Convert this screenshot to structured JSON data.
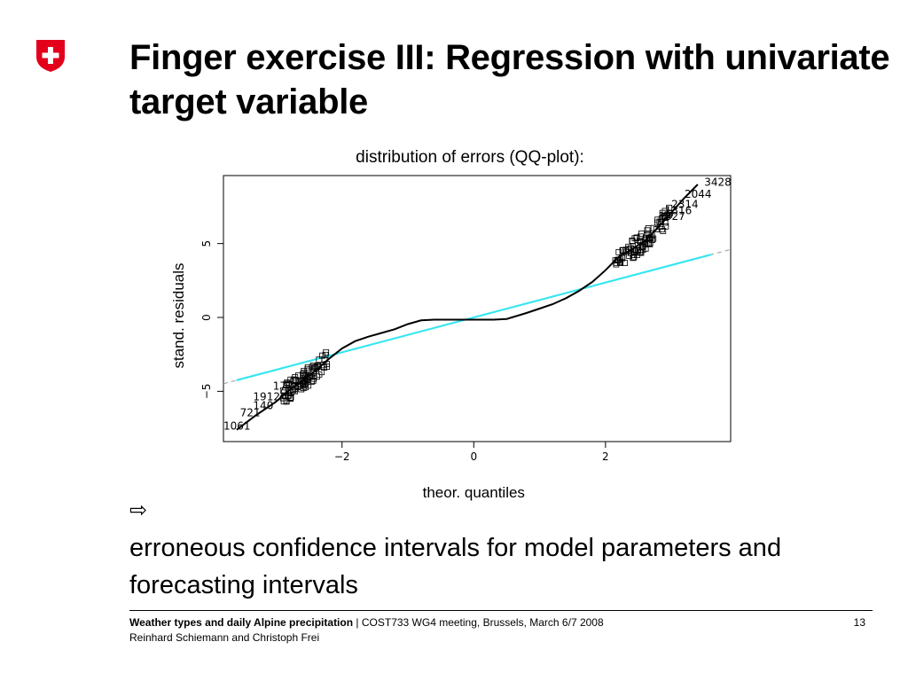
{
  "slide": {
    "title": "Finger exercise III: Regression with univariate target variable",
    "chart_caption": "distribution of errors (QQ-plot):",
    "arrow_symbol": "⇨",
    "conclusion": "erroneous confidence intervals for model parameters and forecasting intervals",
    "logo_icon": "swiss-cross-icon",
    "colors": {
      "logo_red": "#e3001b",
      "reference_line": "#33e6f0",
      "qq_curve": "#000000"
    }
  },
  "footer": {
    "project": "Weather types and daily Alpine precipitation",
    "separator": " | ",
    "event": "COST733 WG4 meeting, Brussels, March 6/7 2008",
    "authors": "Reinhard Schiemann and Christoph Frei",
    "page": "13"
  },
  "chart_data": {
    "type": "scatter",
    "xlabel": "theor. quantiles",
    "ylabel": "stand. residuals",
    "xlim": [
      -3.8,
      3.9
    ],
    "ylim": [
      -8.4,
      9.6
    ],
    "xticks": [
      "-2",
      "0",
      "2"
    ],
    "yticks": [
      "-5",
      "0",
      "5"
    ],
    "qq_curve": [
      [
        -3.6,
        -7.6
      ],
      [
        -3.3,
        -6.6
      ],
      [
        -3.0,
        -5.7
      ],
      [
        -2.8,
        -4.9
      ],
      [
        -2.6,
        -4.3
      ],
      [
        -2.4,
        -3.6
      ],
      [
        -2.2,
        -2.8
      ],
      [
        -2.0,
        -2.1
      ],
      [
        -1.8,
        -1.6
      ],
      [
        -1.6,
        -1.3
      ],
      [
        -1.4,
        -1.05
      ],
      [
        -1.2,
        -0.8
      ],
      [
        -1.0,
        -0.45
      ],
      [
        -0.8,
        -0.2
      ],
      [
        -0.6,
        -0.15
      ],
      [
        -0.3,
        -0.15
      ],
      [
        0.0,
        -0.15
      ],
      [
        0.3,
        -0.15
      ],
      [
        0.5,
        -0.1
      ],
      [
        0.8,
        0.3
      ],
      [
        1.0,
        0.6
      ],
      [
        1.2,
        0.9
      ],
      [
        1.4,
        1.3
      ],
      [
        1.6,
        1.8
      ],
      [
        1.8,
        2.4
      ],
      [
        2.0,
        3.2
      ],
      [
        2.2,
        4.1
      ],
      [
        2.4,
        4.6
      ],
      [
        2.6,
        5.2
      ],
      [
        2.8,
        6.1
      ],
      [
        3.0,
        7.1
      ],
      [
        3.2,
        8.1
      ],
      [
        3.4,
        9.0
      ]
    ],
    "reference_line": {
      "intercept": 0.0,
      "slope": 1.18,
      "x_range": [
        -3.6,
        3.6
      ]
    },
    "point_labels": [
      {
        "text": "3428",
        "x": 3.5,
        "y": 8.9
      },
      {
        "text": "2044",
        "x": 3.2,
        "y": 8.1
      },
      {
        "text": "2314",
        "x": 3.0,
        "y": 7.4
      },
      {
        "text": "1316",
        "x": 2.9,
        "y": 7.0
      },
      {
        "text": "1827",
        "x": 2.8,
        "y": 6.6
      },
      {
        "text": "1061",
        "x": -3.8,
        "y": -7.6
      },
      {
        "text": "721",
        "x": -3.55,
        "y": -6.7
      },
      {
        "text": "140",
        "x": -3.35,
        "y": -6.2
      },
      {
        "text": "1912",
        "x": -3.35,
        "y": -5.6
      },
      {
        "text": "1726",
        "x": -3.05,
        "y": -4.9
      }
    ]
  }
}
